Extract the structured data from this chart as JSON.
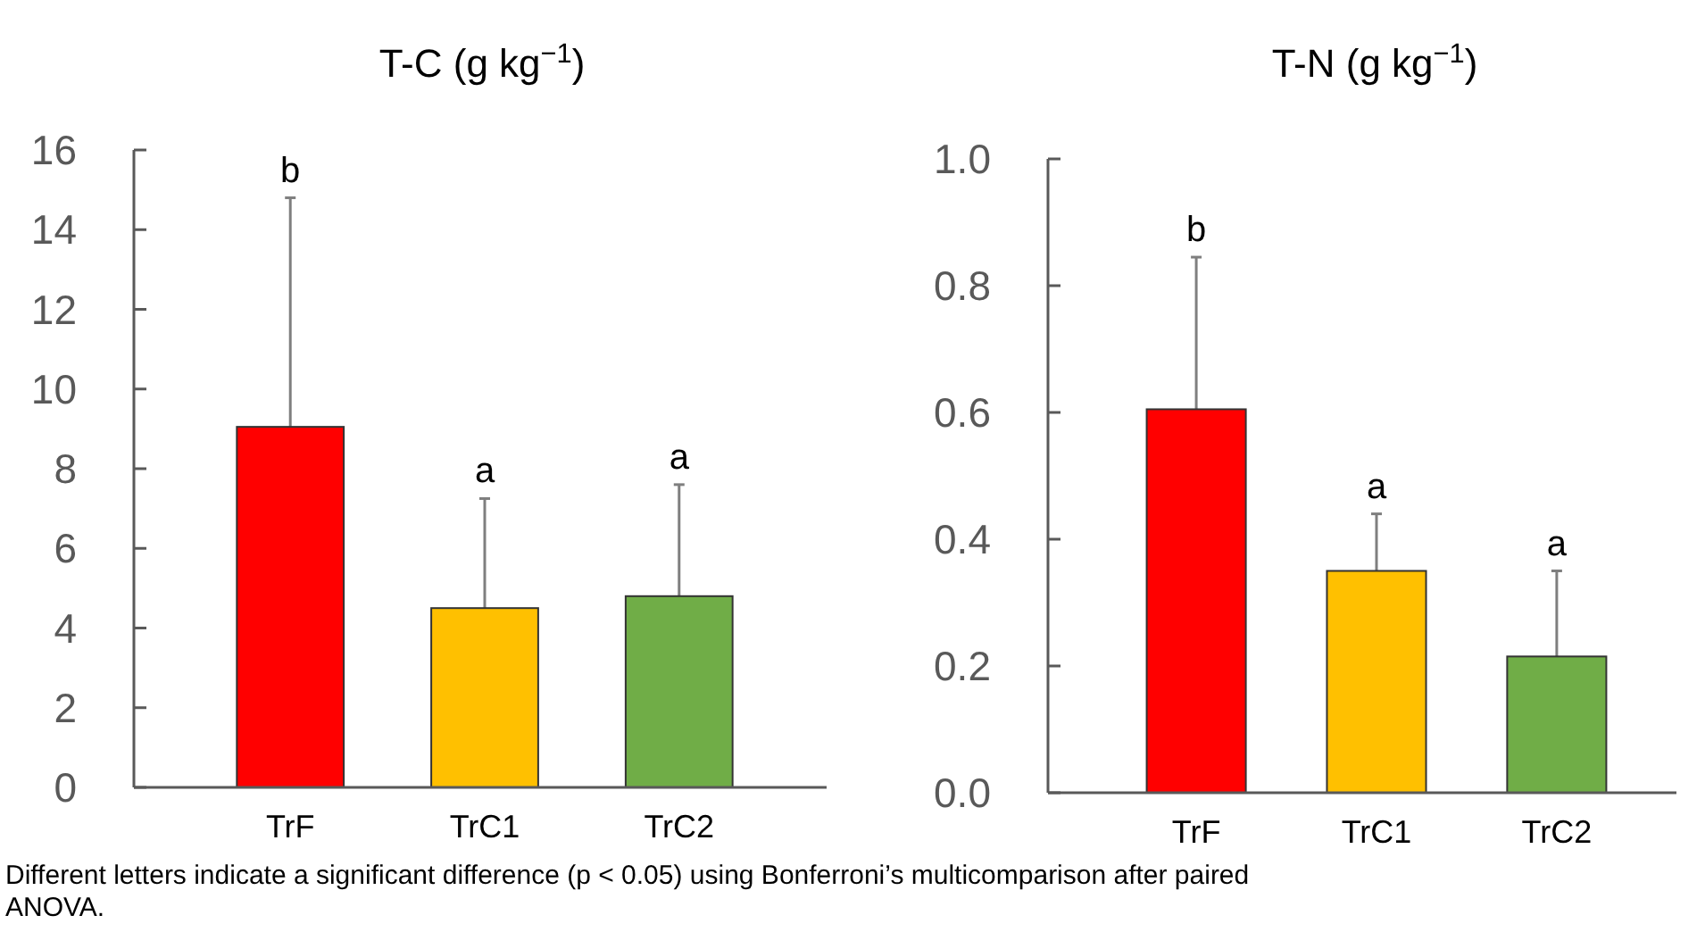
{
  "chart_data": [
    {
      "type": "bar",
      "title": "T-C (g kg$^{−1}$)",
      "categories": [
        "TrF",
        "TrC1",
        "TrC2"
      ],
      "colors": [
        "#ff0000",
        "#ffc000",
        "#70ad47"
      ],
      "values": [
        9.05,
        4.5,
        4.8
      ],
      "errors": [
        [
          9.05,
          14.8
        ],
        [
          4.5,
          7.25
        ],
        [
          4.8,
          7.6
        ]
      ],
      "ylim": [
        0,
        16
      ],
      "yticks": [
        0,
        2,
        4,
        6,
        8,
        10,
        12,
        14,
        16
      ],
      "grid": false,
      "annotations": [
        "b",
        "a",
        "a",
        "Different letters indicate a significant difference (p < 0.05) using Bonferroni’s multicomparison after paired ANOVA."
      ]
    },
    {
      "type": "bar",
      "title": "T-N (g kg$^{−1}$)",
      "categories": [
        "TrF",
        "TrC1",
        "TrC2"
      ],
      "colors": [
        "#ff0000",
        "#ffc000",
        "#70ad47"
      ],
      "values": [
        0.605,
        0.35,
        0.215
      ],
      "errors": [
        [
          0.605,
          0.845
        ],
        [
          0.35,
          0.44
        ],
        [
          0.215,
          0.35
        ]
      ],
      "ylim": [
        0,
        1
      ],
      "yticks": [
        {
          "value": 0,
          "label": "0.0"
        },
        0.2,
        0.4,
        0.6,
        0.8,
        {
          "value": 1,
          "label": "1.0"
        }
      ],
      "grid": false,
      "annotations": [
        "b",
        "a",
        "a"
      ]
    }
  ]
}
